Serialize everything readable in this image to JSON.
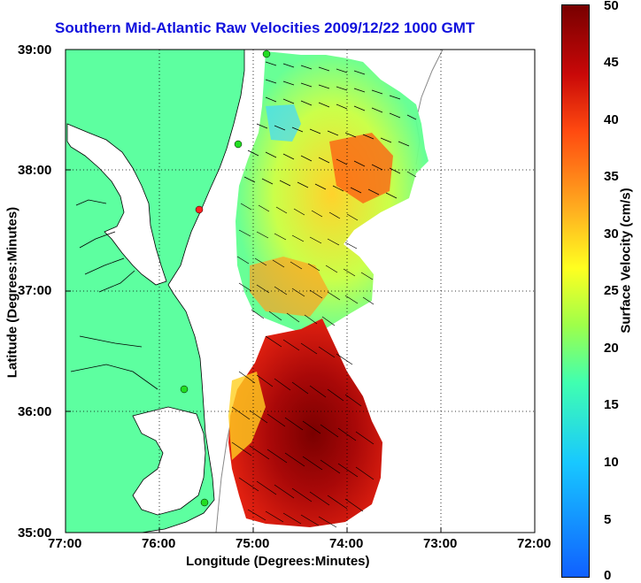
{
  "title": "Southern Mid-Atlantic Raw Velocities 2009/12/22 1000 GMT",
  "xlabel": "Longitude (Degrees:Minutes)",
  "ylabel": "Latitude (Degrees:Minutes)",
  "colorbar_label": "Surface Velocity (cm/s)",
  "x_ticks": [
    "77:00",
    "76:00",
    "75:00",
    "74:00",
    "73:00",
    "72:00"
  ],
  "y_ticks": [
    "39:00",
    "38:00",
    "37:00",
    "36:00",
    "35:00"
  ],
  "colorbar_ticks": [
    "50",
    "45",
    "40",
    "35",
    "30",
    "25",
    "20",
    "15",
    "10",
    "5",
    "0"
  ],
  "colors": {
    "land": "#5dffa0",
    "title": "#1111dd",
    "station": "#22dd22",
    "station_alert": "#ff2222"
  },
  "map_extent": {
    "lon_range": [
      -77,
      -72
    ],
    "lat_range": [
      35,
      39
    ]
  },
  "colorbar_range": [
    0,
    50
  ]
}
